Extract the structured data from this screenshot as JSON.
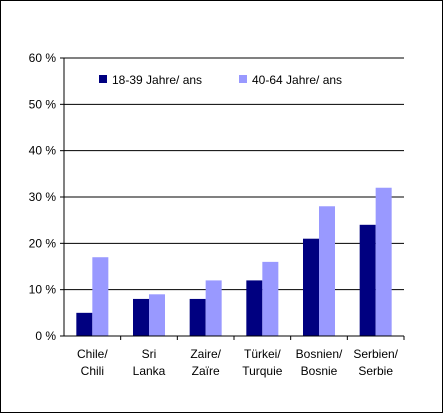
{
  "chart_data": {
    "type": "bar",
    "title": "",
    "xlabel": "",
    "ylabel": "",
    "ylim": [
      0,
      60
    ],
    "yticks": [
      0,
      10,
      20,
      30,
      40,
      50,
      60
    ],
    "ytick_suffix": " %",
    "grid": "horizontal",
    "legend_position": "top",
    "categories": [
      [
        "Chile/",
        "Chili"
      ],
      [
        "Sri",
        "Lanka"
      ],
      [
        "Zaire/",
        "Zaïre"
      ],
      [
        "Türkei/",
        "Turquie"
      ],
      [
        "Bosnien/",
        "Bosnie"
      ],
      [
        "Serbien/",
        "Serbie"
      ]
    ],
    "series": [
      {
        "name": "18-39 Jahre/ ans",
        "color": "#000080",
        "values": [
          5,
          8,
          8,
          12,
          21,
          24
        ]
      },
      {
        "name": "40-64 Jahre/ ans",
        "color": "#9999ff",
        "values": [
          17,
          9,
          12,
          16,
          28,
          32
        ]
      }
    ]
  }
}
